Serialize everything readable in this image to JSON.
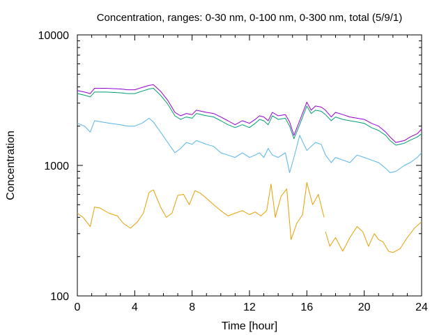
{
  "chart_data": {
    "type": "line",
    "title": "Concentration, ranges: 0-30 nm, 0-100 nm, 0-300 nm, total (5/9/1)",
    "xlabel": "Time [hour]",
    "ylabel": "Concentration",
    "xlim": [
      0,
      24
    ],
    "ylim": [
      100,
      10000
    ],
    "yscale": "log",
    "xticks": [
      "0",
      "4",
      "8",
      "12",
      "16",
      "20",
      "24"
    ],
    "yticks": [
      "100",
      "1000",
      "10000"
    ],
    "grid": false,
    "legend": "none",
    "series": [
      {
        "color": "#9400d3",
        "x": [
          0,
          0.5,
          0.9,
          1.2,
          2,
          3,
          3.5,
          4,
          4.5,
          5,
          5.3,
          5.8,
          6.3,
          6.8,
          7.2,
          7.6,
          8.0,
          8.3,
          9,
          9.5,
          10,
          10.5,
          11,
          11.5,
          12,
          12.4,
          12.7,
          13,
          13.3,
          13.6,
          14.0,
          14.5,
          14.8,
          15.1,
          15.5,
          16,
          16.3,
          16.6,
          17,
          17.3,
          17.7,
          18,
          18.5,
          19,
          19.5,
          20,
          20.5,
          21,
          21.5,
          21.8,
          22.2,
          22.8,
          23.2,
          23.7,
          24
        ],
        "y": [
          3750,
          3650,
          3550,
          3900,
          3900,
          3850,
          3800,
          3800,
          3950,
          4100,
          4150,
          3700,
          3150,
          2550,
          2400,
          2500,
          2450,
          2650,
          2550,
          2500,
          2350,
          2200,
          2050,
          2200,
          2100,
          2250,
          2400,
          2350,
          2200,
          2550,
          2400,
          2450,
          2150,
          1700,
          2200,
          3050,
          2650,
          2850,
          2800,
          2650,
          2350,
          2550,
          2450,
          2350,
          2300,
          2250,
          2100,
          2000,
          1800,
          1650,
          1500,
          1550,
          1650,
          1750,
          1900
        ]
      },
      {
        "color": "#009e73",
        "x": [
          0,
          0.5,
          0.9,
          1.2,
          2,
          3,
          3.5,
          4,
          4.5,
          5,
          5.3,
          5.8,
          6.3,
          6.8,
          7.2,
          7.6,
          8.0,
          8.3,
          9,
          9.5,
          10,
          10.5,
          11,
          11.5,
          12,
          12.4,
          12.7,
          13,
          13.3,
          13.6,
          14.0,
          14.5,
          14.8,
          15.1,
          15.5,
          16,
          16.3,
          16.6,
          17,
          17.3,
          17.7,
          18,
          18.5,
          19,
          19.5,
          20,
          20.5,
          21,
          21.5,
          21.8,
          22.2,
          22.8,
          23.2,
          23.7,
          24
        ],
        "y": [
          3550,
          3450,
          3350,
          3650,
          3650,
          3600,
          3550,
          3550,
          3700,
          3850,
          3900,
          3450,
          2950,
          2400,
          2250,
          2350,
          2300,
          2500,
          2400,
          2350,
          2200,
          2050,
          1950,
          2050,
          1950,
          2100,
          2250,
          2200,
          2050,
          2400,
          2250,
          2300,
          2000,
          1600,
          2050,
          2850,
          2500,
          2650,
          2600,
          2450,
          2200,
          2350,
          2250,
          2200,
          2150,
          2100,
          1950,
          1850,
          1700,
          1550,
          1430,
          1480,
          1560,
          1650,
          1750
        ]
      },
      {
        "color": "#56b4e9",
        "x": [
          0,
          0.5,
          0.9,
          1.2,
          1.7,
          2.3,
          3,
          3.5,
          4,
          4.5,
          5,
          5.3,
          5.8,
          6.3,
          6.8,
          7.2,
          7.6,
          8.0,
          8.3,
          9,
          9.5,
          10,
          10.5,
          11,
          11.5,
          12,
          12.4,
          12.7,
          13,
          13.3,
          13.6,
          14.0,
          14.5,
          14.8,
          15.1,
          15.5,
          16,
          16.3,
          16.6,
          17,
          17.3,
          17.7,
          18,
          18.5,
          19,
          19.5,
          20,
          20.5,
          21,
          21.5,
          21.8,
          22.2,
          22.8,
          23.2,
          23.7,
          24
        ],
        "y": [
          2100,
          2000,
          1800,
          2200,
          2150,
          2100,
          2050,
          2000,
          2000,
          2100,
          2300,
          2150,
          1800,
          1500,
          1250,
          1350,
          1500,
          1450,
          1550,
          1450,
          1400,
          1250,
          1200,
          1150,
          1250,
          1150,
          1200,
          1250,
          1150,
          1350,
          1200,
          1150,
          1250,
          880,
          1150,
          1700,
          1300,
          1400,
          1500,
          1450,
          1200,
          1050,
          1150,
          1100,
          1050,
          1200,
          1150,
          1100,
          1050,
          950,
          880,
          900,
          1000,
          1050,
          1150,
          1250
        ]
      },
      {
        "color": "#e69f00",
        "x": [
          0,
          0.4,
          0.9,
          1.2,
          1.6,
          2.2,
          2.8,
          3.2,
          3.7,
          4.2,
          4.6,
          5,
          5.3,
          5.8,
          6.2,
          6.6,
          7.0,
          7.4,
          7.8,
          8.2,
          8.6,
          9,
          9.5,
          10,
          10.5,
          11,
          11.5,
          12,
          12.4,
          12.8,
          13.2,
          13.5,
          13.8,
          14.2,
          14.6,
          14.9,
          15.3,
          15.7,
          16,
          16.4,
          16.8,
          17.2,
          null,
          17.3,
          17.6,
          18,
          18.5,
          19,
          19.5,
          19.9,
          20.3,
          20.7,
          21,
          21.3,
          21.7,
          22.0,
          22.5,
          23,
          23.5,
          24
        ],
        "y": [
          430,
          400,
          340,
          480,
          470,
          430,
          410,
          360,
          330,
          370,
          430,
          620,
          650,
          480,
          400,
          430,
          590,
          600,
          500,
          640,
          610,
          560,
          500,
          450,
          410,
          430,
          450,
          420,
          440,
          410,
          450,
          720,
          400,
          580,
          660,
          270,
          360,
          420,
          740,
          500,
          600,
          400,
          null,
          310,
          240,
          280,
          220,
          280,
          340,
          310,
          240,
          300,
          270,
          260,
          220,
          215,
          230,
          280,
          330,
          370
        ]
      }
    ]
  }
}
